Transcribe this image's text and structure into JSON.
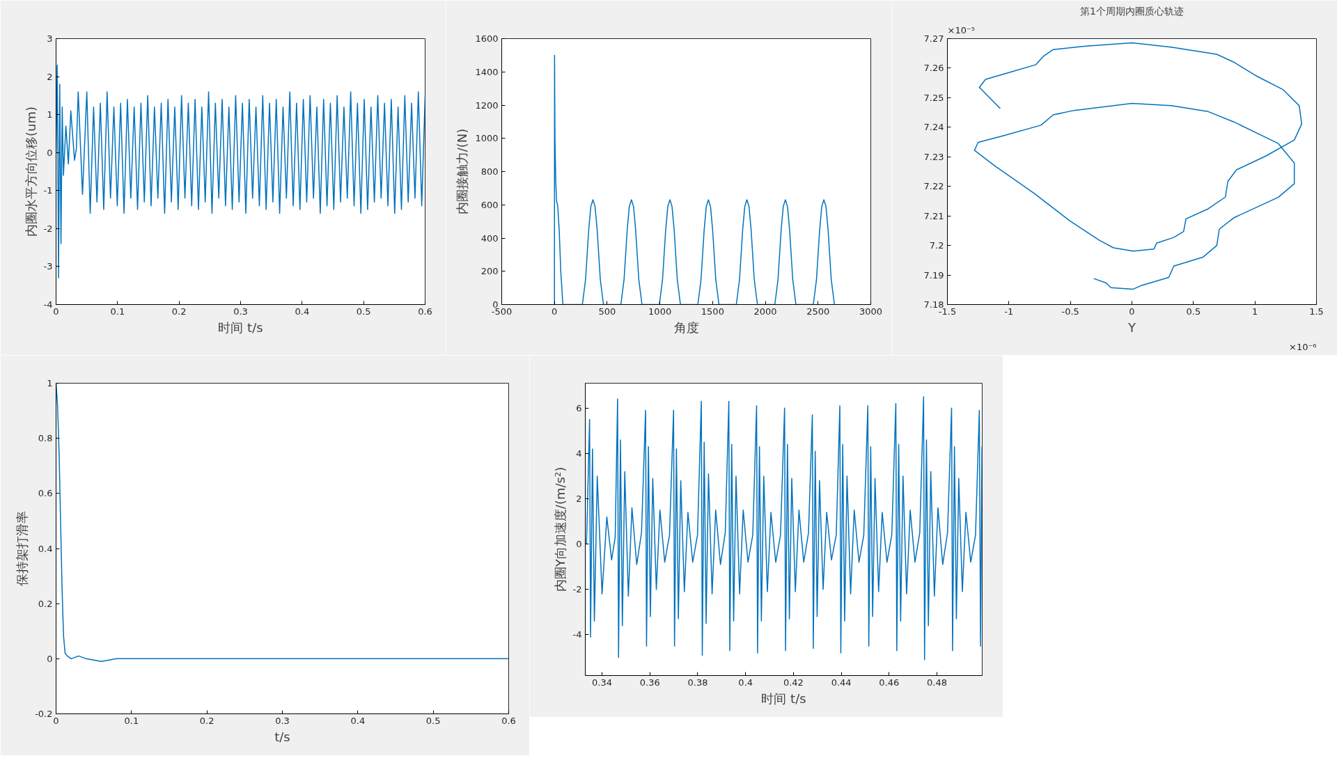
{
  "chart_data": [
    {
      "type": "line",
      "xlabel": "时间 t/s",
      "ylabel": "内圈水平方向位移(um)",
      "xlim": [
        0,
        0.6
      ],
      "ylim": [
        -4,
        3
      ],
      "xticks": [
        0,
        0.1,
        0.2,
        0.3,
        0.4,
        0.5,
        0.6
      ],
      "yticks": [
        -4,
        -3,
        -2,
        -1,
        0,
        1,
        2,
        3
      ],
      "x": [
        0,
        0.002,
        0.004,
        0.006,
        0.008,
        0.01,
        0.012,
        0.016,
        0.02,
        0.024,
        0.03,
        0.033,
        0.036,
        0.043,
        0.05,
        0.0555,
        0.061,
        0.0665,
        0.072,
        0.0775,
        0.083,
        0.0885,
        0.094,
        0.0995,
        0.105,
        0.1105,
        0.116,
        0.1215,
        0.127,
        0.1325,
        0.138,
        0.1435,
        0.149,
        0.1545,
        0.16,
        0.1655,
        0.171,
        0.1765,
        0.182,
        0.1875,
        0.193,
        0.1985,
        0.204,
        0.2095,
        0.215,
        0.2205,
        0.226,
        0.2315,
        0.237,
        0.2425,
        0.248,
        0.2535,
        0.259,
        0.2645,
        0.27,
        0.2755,
        0.281,
        0.2865,
        0.292,
        0.2975,
        0.303,
        0.3085,
        0.314,
        0.3195,
        0.325,
        0.3305,
        0.336,
        0.3415,
        0.347,
        0.3525,
        0.358,
        0.3635,
        0.369,
        0.3745,
        0.38,
        0.3855,
        0.391,
        0.3965,
        0.402,
        0.4075,
        0.413,
        0.4185,
        0.424,
        0.4295,
        0.435,
        0.4405,
        0.446,
        0.4515,
        0.457,
        0.4625,
        0.468,
        0.4735,
        0.479,
        0.4845,
        0.49,
        0.4955,
        0.501,
        0.5065,
        0.512,
        0.5175,
        0.523,
        0.5285,
        0.534,
        0.5395,
        0.545,
        0.5505,
        0.556,
        0.5615,
        0.567,
        0.5725,
        0.578,
        0.5835,
        0.589,
        0.5945,
        0.6
      ],
      "series": [
        {
          "color": "#0072bd",
          "values": [
            0,
            2.3,
            -3.3,
            1.8,
            -2.4,
            1.2,
            -0.6,
            0.7,
            -0.3,
            1.1,
            -0.2,
            0.1,
            1.6,
            -1.1,
            1.6,
            -1.6,
            1.2,
            -1.3,
            1.3,
            -1.5,
            1.6,
            -1.2,
            1.2,
            -1.4,
            1.3,
            -1.6,
            1.4,
            -1.2,
            1.2,
            -1.5,
            1.3,
            -1.3,
            1.5,
            -1.4,
            1.2,
            -1.2,
            1.3,
            -1.6,
            1.4,
            -1.3,
            1.2,
            -1.5,
            1.5,
            -1.2,
            1.3,
            -1.4,
            1.4,
            -1.5,
            1.2,
            -1.3,
            1.6,
            -1.6,
            1.3,
            -1.2,
            1.4,
            -1.4,
            1.2,
            -1.5,
            1.5,
            -1.3,
            1.3,
            -1.6,
            1.4,
            -1.2,
            1.2,
            -1.4,
            1.5,
            -1.5,
            1.3,
            -1.3,
            1.4,
            -1.6,
            1.2,
            -1.2,
            1.6,
            -1.4,
            1.3,
            -1.5,
            1.4,
            -1.3,
            1.5,
            -1.2,
            1.2,
            -1.6,
            1.4,
            -1.4,
            1.3,
            -1.5,
            1.5,
            -1.3,
            1.2,
            -1.2,
            1.6,
            -1.4,
            1.3,
            -1.6,
            1.4,
            -1.5,
            1.2,
            -1.3,
            1.5,
            -1.2,
            1.3,
            -1.4,
            1.4,
            -1.6,
            1.2,
            -1.5,
            1.5,
            -1.3,
            1.3,
            -1.2,
            1.6,
            -1.4,
            1.5
          ]
        }
      ]
    },
    {
      "type": "line",
      "xlabel": "角度",
      "ylabel": "内圈接触力/(N)",
      "xlim": [
        -500,
        3000
      ],
      "ylim": [
        0,
        1600
      ],
      "xticks": [
        -500,
        0,
        500,
        1000,
        1500,
        2000,
        2500,
        3000
      ],
      "yticks": [
        0,
        200,
        400,
        600,
        800,
        1000,
        1200,
        1400,
        1600
      ],
      "x": [
        0,
        1,
        5,
        12,
        20,
        30,
        45,
        60,
        80,
        265,
        295,
        325,
        345,
        365,
        385,
        405,
        435,
        465,
        630,
        660,
        690,
        710,
        730,
        750,
        770,
        800,
        830,
        995,
        1025,
        1055,
        1075,
        1095,
        1115,
        1135,
        1165,
        1195,
        1360,
        1390,
        1420,
        1440,
        1460,
        1480,
        1500,
        1530,
        1560,
        1725,
        1755,
        1785,
        1805,
        1825,
        1845,
        1865,
        1895,
        1925,
        2090,
        2120,
        2150,
        2170,
        2190,
        2210,
        2230,
        2260,
        2290,
        2455,
        2485,
        2515,
        2535,
        2555,
        2575,
        2595,
        2625,
        2655
      ],
      "series": [
        {
          "color": "#0072bd",
          "values": [
            0,
            1500,
            1000,
            750,
            620,
            600,
            450,
            200,
            0,
            0,
            150,
            450,
            590,
            630,
            590,
            450,
            150,
            0,
            0,
            150,
            450,
            590,
            630,
            590,
            450,
            150,
            0,
            0,
            150,
            450,
            590,
            630,
            590,
            450,
            150,
            0,
            0,
            150,
            450,
            590,
            630,
            590,
            450,
            150,
            0,
            0,
            150,
            450,
            590,
            630,
            590,
            450,
            150,
            0,
            0,
            150,
            450,
            590,
            630,
            590,
            450,
            150,
            0,
            0,
            150,
            450,
            590,
            630,
            590,
            450,
            150,
            0
          ]
        }
      ]
    },
    {
      "type": "line",
      "title": "第1个周期内圈质心轨迹",
      "xlabel": "Y",
      "xlim": [
        -1.5,
        1.5
      ],
      "ylim": [
        7.18,
        7.27
      ],
      "xticks": [
        -1.5,
        -1,
        -0.5,
        0,
        0.5,
        1,
        1.5
      ],
      "yticks": [
        7.18,
        7.19,
        7.2,
        7.21,
        7.22,
        7.23,
        7.24,
        7.25,
        7.26,
        7.27
      ],
      "annotations": [
        "×10⁻⁵",
        "×10⁻⁶"
      ],
      "x": [
        -1.07,
        -1.24,
        -1.19,
        -1.0,
        -0.78,
        -0.72,
        -0.64,
        -0.39,
        0,
        0.32,
        0.69,
        0.83,
        1.01,
        1.23,
        1.36,
        1.38,
        1.32,
        1.09,
        0.85,
        0.78,
        0.76,
        0.62,
        0.44,
        0.42,
        0.34,
        0.2,
        0.18,
        0.01,
        -0.15,
        -0.27,
        -0.51,
        -0.8,
        -1.12,
        -1.28,
        -1.25,
        -1.04,
        -0.74,
        -0.64,
        -0.47,
        0,
        0.32,
        0.62,
        0.83,
        1.19,
        1.32,
        1.32,
        1.19,
        0.83,
        0.71,
        0.69,
        0.58,
        0.34,
        0.3,
        0.08,
        0.01,
        -0.17,
        -0.21,
        -0.31
      ],
      "series": [
        {
          "color": "#0072bd",
          "values": [
            7.2463,
            7.2535,
            7.2562,
            7.2585,
            7.2612,
            7.264,
            7.2663,
            7.2674,
            7.2686,
            7.2671,
            7.2647,
            7.262,
            7.2574,
            7.2527,
            7.2473,
            7.2411,
            7.2357,
            7.2303,
            7.2256,
            7.2217,
            7.2164,
            7.2124,
            7.209,
            7.2047,
            7.2027,
            7.2008,
            7.1988,
            7.1981,
            7.1992,
            7.2019,
            7.2085,
            7.2178,
            7.2271,
            7.2322,
            7.2349,
            7.2372,
            7.2407,
            7.2442,
            7.2457,
            7.2481,
            7.2473,
            7.2453,
            7.2418,
            7.2345,
            7.2279,
            7.2209,
            7.2163,
            7.2094,
            7.2055,
            7.2,
            7.1961,
            7.193,
            7.1892,
            7.1865,
            7.1852,
            7.1857,
            7.1873,
            7.1888
          ]
        }
      ]
    },
    {
      "type": "line",
      "xlabel": "t/s",
      "ylabel": "保持架打滑率",
      "xlim": [
        0,
        0.6
      ],
      "ylim": [
        -0.2,
        1
      ],
      "xticks": [
        0,
        0.1,
        0.2,
        0.3,
        0.4,
        0.5,
        0.6
      ],
      "yticks": [
        -0.2,
        0,
        0.2,
        0.4,
        0.6,
        0.8,
        1
      ],
      "x": [
        0,
        0.002,
        0.004,
        0.006,
        0.008,
        0.01,
        0.012,
        0.015,
        0.02,
        0.03,
        0.04,
        0.06,
        0.08,
        0.1,
        0.15,
        0.2,
        0.3,
        0.4,
        0.5,
        0.6
      ],
      "series": [
        {
          "color": "#0072bd",
          "values": [
            1,
            0.92,
            0.75,
            0.5,
            0.25,
            0.08,
            0.02,
            0.01,
            0,
            0.01,
            0,
            -0.01,
            0,
            0,
            0,
            0,
            0,
            0,
            0,
            0
          ]
        }
      ]
    },
    {
      "type": "line",
      "xlabel": "时间 t/s",
      "ylabel": "内圈Y向加速度/(m/s²)",
      "xlim": [
        0.333,
        0.4989
      ],
      "ylim": [
        -5.8,
        7.1
      ],
      "xticks": [
        0.34,
        0.36,
        0.38,
        0.4,
        0.42,
        0.44,
        0.46,
        0.48
      ],
      "yticks": [
        -4,
        -2,
        0,
        2,
        4,
        6
      ],
      "x": [
        0.3335,
        0.3348,
        0.3352,
        0.336,
        0.3368,
        0.338,
        0.34,
        0.342,
        0.344,
        0.3455,
        0.3465,
        0.3469,
        0.3477,
        0.3485,
        0.3495,
        0.351,
        0.3525,
        0.3545,
        0.3565,
        0.3582,
        0.3586,
        0.3594,
        0.3602,
        0.3612,
        0.3627,
        0.3642,
        0.3662,
        0.3682,
        0.3699,
        0.3703,
        0.3711,
        0.3719,
        0.3729,
        0.3744,
        0.3759,
        0.3779,
        0.3799,
        0.3815,
        0.3819,
        0.3827,
        0.3835,
        0.3845,
        0.386,
        0.3875,
        0.3895,
        0.3915,
        0.393,
        0.3934,
        0.3942,
        0.395,
        0.396,
        0.3975,
        0.399,
        0.401,
        0.403,
        0.4046,
        0.405,
        0.4058,
        0.4066,
        0.4076,
        0.4091,
        0.4106,
        0.4126,
        0.4146,
        0.4163,
        0.4167,
        0.4175,
        0.4183,
        0.4193,
        0.4208,
        0.4223,
        0.4243,
        0.4263,
        0.4279,
        0.4283,
        0.4291,
        0.4299,
        0.4309,
        0.4324,
        0.4339,
        0.4359,
        0.4379,
        0.4394,
        0.4398,
        0.4406,
        0.4414,
        0.4424,
        0.4439,
        0.4454,
        0.4474,
        0.4494,
        0.4511,
        0.4515,
        0.4523,
        0.4531,
        0.4541,
        0.4556,
        0.4571,
        0.4591,
        0.4611,
        0.4628,
        0.4632,
        0.464,
        0.4648,
        0.4658,
        0.4673,
        0.4688,
        0.4708,
        0.4728,
        0.4744,
        0.4748,
        0.4756,
        0.4764,
        0.4774,
        0.4789,
        0.4804,
        0.4824,
        0.4844,
        0.4861,
        0.4865,
        0.4873,
        0.4881,
        0.4891,
        0.4906,
        0.4921,
        0.4941,
        0.4961,
        0.4977,
        0.4982,
        0.4988
      ],
      "series": [
        {
          "color": "#0072bd",
          "values": [
            0,
            5.5,
            -4.1,
            4.2,
            -3.4,
            3.0,
            -2.2,
            1.2,
            -0.7,
            0.3,
            6.4,
            -5.0,
            4.6,
            -3.6,
            3.2,
            -2.3,
            1.6,
            -0.9,
            0.5,
            5.9,
            -4.5,
            4.3,
            -3.2,
            2.9,
            -2.0,
            1.5,
            -0.8,
            0.4,
            5.9,
            -4.5,
            4.2,
            -3.3,
            2.8,
            -2.1,
            1.4,
            -0.8,
            0.4,
            6.3,
            -4.9,
            4.5,
            -3.5,
            3.1,
            -2.2,
            1.5,
            -0.9,
            0.5,
            6.3,
            -4.7,
            4.4,
            -3.4,
            3.0,
            -2.2,
            1.5,
            -0.8,
            0.4,
            6.1,
            -4.8,
            4.3,
            -3.4,
            3.0,
            -2.1,
            1.4,
            -0.8,
            0.4,
            6.0,
            -4.7,
            4.4,
            -3.3,
            2.9,
            -2.1,
            1.5,
            -0.8,
            0.5,
            5.7,
            -4.6,
            4.1,
            -3.2,
            2.8,
            -2.0,
            1.4,
            -0.7,
            0.4,
            6.1,
            -4.8,
            4.4,
            -3.4,
            3.0,
            -2.2,
            1.5,
            -0.8,
            0.4,
            6.1,
            -4.5,
            4.3,
            -3.2,
            2.9,
            -2.1,
            1.4,
            -0.8,
            0.4,
            6.2,
            -4.7,
            4.4,
            -3.4,
            3.0,
            -2.2,
            1.5,
            -0.8,
            0.5,
            6.5,
            -5.1,
            4.6,
            -3.6,
            3.2,
            -2.3,
            1.6,
            -0.9,
            0.5,
            6.0,
            -4.7,
            4.3,
            -3.3,
            2.9,
            -2.1,
            1.4,
            -0.8,
            0.4,
            5.9,
            -4.5,
            4.3
          ]
        }
      ]
    }
  ]
}
